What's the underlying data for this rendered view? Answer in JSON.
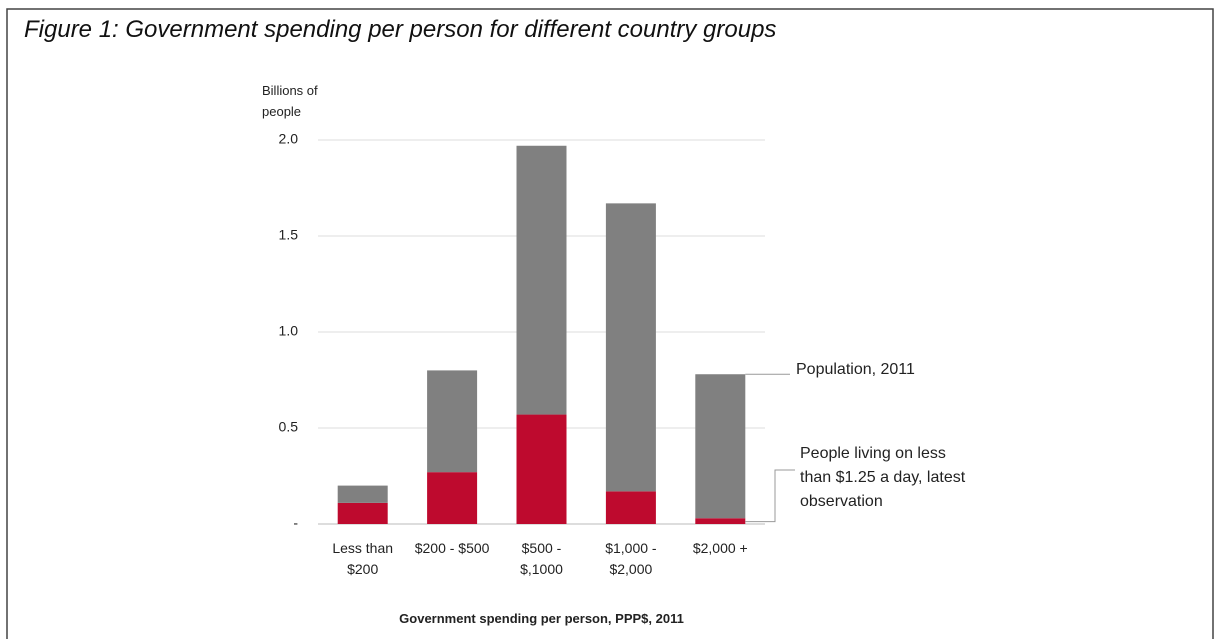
{
  "chart_data": {
    "type": "stacked-bar",
    "title": "Figure 1: Government spending per person for different country groups",
    "y_label": "Billions of people",
    "x_label": "Government spending per person, PPP$, 2011",
    "categories": [
      "Less than $200",
      "$200 - $500",
      "$500 - $,1000",
      "$1,000 - $2,000",
      "$2,000 +"
    ],
    "series": [
      {
        "name": "People living on less than $1.25 a day, latest observation",
        "color": "#be0a2e",
        "values": [
          0.11,
          0.27,
          0.57,
          0.17,
          0.03
        ]
      },
      {
        "name": "Population, 2011",
        "color": "#808080",
        "values": [
          0.09,
          0.53,
          1.4,
          1.5,
          0.75
        ]
      }
    ],
    "ylim": [
      0,
      2.0
    ],
    "yticks": [
      {
        "value": 0,
        "label": "-"
      },
      0.5,
      {
        "value": 1,
        "label": "1.0"
      },
      1.5,
      {
        "value": 2,
        "label": "2.0"
      }
    ],
    "grid": true
  }
}
